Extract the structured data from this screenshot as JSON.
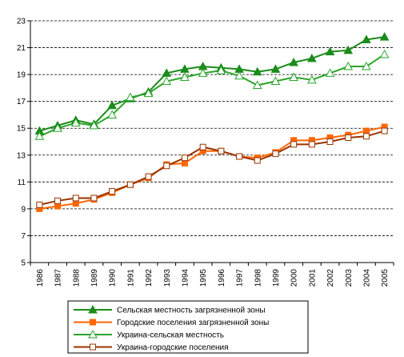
{
  "chart_data": {
    "type": "line",
    "categories": [
      "1986",
      "1987",
      "1988",
      "1989",
      "1990",
      "1991",
      "1992",
      "1993",
      "1994",
      "1995",
      "1996",
      "1997",
      "1998",
      "1999",
      "2000",
      "2001",
      "2002",
      "2003",
      "2004",
      "2005"
    ],
    "series": [
      {
        "name": "Сельская местность загрязненной зоны",
        "color": "#1a8c1a",
        "marker": "triangle-filled",
        "values": [
          14.8,
          15.2,
          15.6,
          15.3,
          16.7,
          17.2,
          17.7,
          19.1,
          19.4,
          19.6,
          19.5,
          19.4,
          19.2,
          19.4,
          19.9,
          20.2,
          20.7,
          20.8,
          21.6,
          21.8
        ]
      },
      {
        "name": "Городские поселения загрязненной зоны",
        "color": "#ff6600",
        "marker": "square-filled",
        "values": [
          9.0,
          9.2,
          9.4,
          9.7,
          10.2,
          10.8,
          11.3,
          12.3,
          12.4,
          13.3,
          13.3,
          12.9,
          12.8,
          13.2,
          14.1,
          14.1,
          14.3,
          14.5,
          14.8,
          15.1
        ]
      },
      {
        "name": "Украина-сельская местность",
        "color": "#2aa52a",
        "marker": "triangle-open",
        "values": [
          14.4,
          15.0,
          15.4,
          15.2,
          16.0,
          17.3,
          17.6,
          18.5,
          18.8,
          19.1,
          19.3,
          18.9,
          18.2,
          18.5,
          18.8,
          18.6,
          19.1,
          19.6,
          19.6,
          20.5
        ]
      },
      {
        "name": "Украина-городские поселения",
        "color": "#993300",
        "marker": "square-open",
        "values": [
          9.3,
          9.6,
          9.8,
          9.8,
          10.3,
          10.8,
          11.4,
          12.2,
          12.8,
          13.6,
          13.3,
          12.9,
          12.6,
          13.1,
          13.8,
          13.8,
          14.0,
          14.3,
          14.4,
          14.8
        ]
      }
    ],
    "ylim": [
      5,
      23
    ],
    "yticks": [
      5,
      7,
      9,
      11,
      13,
      15,
      17,
      19,
      21,
      23
    ],
    "grid": true
  }
}
